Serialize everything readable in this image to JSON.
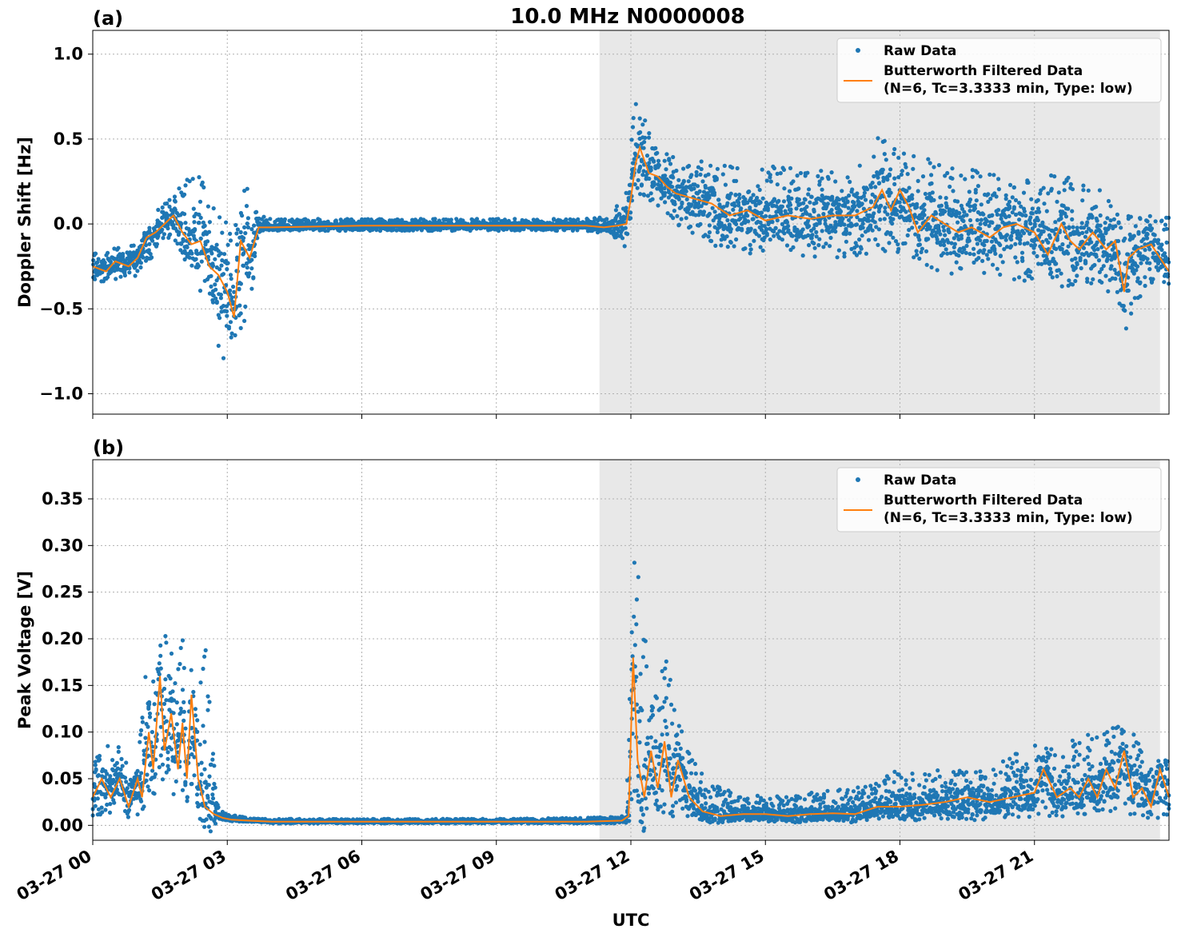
{
  "figure": {
    "title": "10.0 MHz N0000008",
    "xlabel": "UTC",
    "xticks": [
      "03-27 00",
      "03-27 03",
      "03-27 06",
      "03-27 09",
      "03-27 12",
      "03-27 15",
      "03-27 18",
      "03-27 21"
    ],
    "shade_range_hours": [
      11.3,
      23.8
    ],
    "colors": {
      "raw": "#1f77b4",
      "filtered": "#ff7f0e",
      "shade": "#e8e8e8",
      "grid": "#b0b0b0"
    }
  },
  "chart_data": [
    {
      "type": "line",
      "panel_label": "(a)",
      "ylabel": "Doppler Shift [Hz]",
      "ylim": [
        -1.12,
        1.14
      ],
      "xlim_hours": [
        0,
        24
      ],
      "yticks": [
        {
          "v": 1.0,
          "label": "1.0"
        },
        {
          "v": 0.5,
          "label": "0.5"
        },
        {
          "v": 0.0,
          "label": "0.0"
        },
        {
          "v": -0.5,
          "label": "−0.5"
        },
        {
          "v": -1.0,
          "label": "−1.0"
        }
      ],
      "grid": true,
      "legend": {
        "placement": "top-right",
        "entries": [
          "Raw Data",
          "Butterworth Filtered Data",
          "(N=6, Tc=3.3333 min, Type: low)"
        ]
      },
      "series": [
        {
          "name": "Raw Data",
          "kind": "scatter",
          "band_x": [
            0,
            0.5,
            1.0,
            1.2,
            1.5,
            1.8,
            2.0,
            2.3,
            2.6,
            2.9,
            3.0,
            3.2,
            3.5,
            3.7,
            4,
            6,
            9,
            11,
            11.5,
            11.9,
            12.1,
            12.3,
            12.6,
            13,
            14,
            15,
            16,
            17,
            17.5,
            18,
            19,
            20,
            21,
            21.5,
            22,
            22.5,
            22.8,
            23,
            23.5,
            24
          ],
          "band_low": [
            -0.35,
            -0.33,
            -0.32,
            -0.25,
            -0.12,
            -0.08,
            -0.18,
            -0.35,
            -0.6,
            -0.88,
            -0.8,
            -0.7,
            -0.55,
            -0.05,
            -0.04,
            -0.04,
            -0.04,
            -0.04,
            -0.06,
            -0.25,
            0.1,
            0.15,
            0.1,
            0.0,
            -0.15,
            -0.2,
            -0.2,
            -0.2,
            -0.15,
            -0.2,
            -0.3,
            -0.3,
            -0.35,
            -0.4,
            -0.35,
            -0.35,
            -0.45,
            -0.65,
            -0.35,
            -0.35
          ],
          "band_high": [
            -0.15,
            -0.14,
            -0.12,
            -0.02,
            0.1,
            0.18,
            0.3,
            0.32,
            0.22,
            0.05,
            0.1,
            0.15,
            0.25,
            0.05,
            0.03,
            0.03,
            0.03,
            0.03,
            0.05,
            0.2,
            0.75,
            0.65,
            0.45,
            0.4,
            0.35,
            0.35,
            0.32,
            0.3,
            0.55,
            0.45,
            0.35,
            0.3,
            0.25,
            0.3,
            0.25,
            0.2,
            0.1,
            0.05,
            0.05,
            0.05
          ]
        },
        {
          "name": "Butterworth Filtered Data",
          "kind": "line",
          "x": [
            0,
            0.3,
            0.5,
            0.8,
            1.0,
            1.2,
            1.4,
            1.6,
            1.8,
            2.0,
            2.2,
            2.4,
            2.6,
            2.8,
            3.0,
            3.15,
            3.3,
            3.5,
            3.7,
            4.0,
            6,
            8,
            9,
            10,
            11,
            11.4,
            11.7,
            11.9,
            12.0,
            12.1,
            12.2,
            12.4,
            12.6,
            12.8,
            13.0,
            13.4,
            13.8,
            14.2,
            14.6,
            15.0,
            15.5,
            16.0,
            16.5,
            17.0,
            17.4,
            17.6,
            17.8,
            18.0,
            18.2,
            18.4,
            18.7,
            19.0,
            19.3,
            19.6,
            20.0,
            20.3,
            20.6,
            21.0,
            21.3,
            21.6,
            21.8,
            22.0,
            22.3,
            22.6,
            22.8,
            23.0,
            23.1,
            23.3,
            23.6,
            24.0
          ],
          "y": [
            -0.25,
            -0.28,
            -0.22,
            -0.25,
            -0.2,
            -0.08,
            -0.05,
            0.0,
            0.05,
            -0.05,
            -0.12,
            -0.1,
            -0.25,
            -0.3,
            -0.4,
            -0.55,
            -0.1,
            -0.2,
            -0.02,
            -0.02,
            -0.01,
            -0.01,
            -0.01,
            -0.01,
            -0.01,
            -0.02,
            -0.01,
            0.0,
            0.15,
            0.35,
            0.45,
            0.3,
            0.28,
            0.22,
            0.18,
            0.15,
            0.12,
            0.05,
            0.08,
            0.02,
            0.05,
            0.03,
            0.05,
            0.05,
            0.1,
            0.2,
            0.08,
            0.2,
            0.1,
            -0.05,
            0.05,
            0.0,
            -0.05,
            -0.02,
            -0.08,
            -0.02,
            0.0,
            -0.05,
            -0.18,
            0.0,
            -0.1,
            -0.15,
            -0.05,
            -0.15,
            -0.1,
            -0.4,
            -0.2,
            -0.15,
            -0.12,
            -0.28
          ]
        }
      ]
    },
    {
      "type": "line",
      "panel_label": "(b)",
      "ylabel": "Peak Voltage [V]",
      "ylim": [
        -0.016,
        0.392
      ],
      "xlim_hours": [
        0,
        24
      ],
      "yticks": [
        {
          "v": 0.35,
          "label": "0.35"
        },
        {
          "v": 0.3,
          "label": "0.30"
        },
        {
          "v": 0.25,
          "label": "0.25"
        },
        {
          "v": 0.2,
          "label": "0.20"
        },
        {
          "v": 0.15,
          "label": "0.15"
        },
        {
          "v": 0.1,
          "label": "0.10"
        },
        {
          "v": 0.05,
          "label": "0.05"
        },
        {
          "v": 0.0,
          "label": "0.00"
        }
      ],
      "grid": true,
      "legend": {
        "placement": "top-right",
        "entries": [
          "Raw Data",
          "Butterworth Filtered Data",
          "(N=6, Tc=3.3333 min, Type: low)"
        ]
      },
      "series": [
        {
          "name": "Raw Data",
          "kind": "scatter",
          "band_x": [
            0,
            0.5,
            1.0,
            1.2,
            1.4,
            1.6,
            1.8,
            2.0,
            2.2,
            2.5,
            2.8,
            3.0,
            3.5,
            4,
            6,
            9,
            11,
            11.9,
            12.05,
            12.2,
            12.5,
            12.8,
            13.0,
            13.5,
            14,
            15,
            16,
            17,
            18,
            19,
            20,
            21,
            21.5,
            22,
            22.5,
            23,
            23.5,
            24
          ],
          "band_low": [
            0.01,
            0.01,
            0.01,
            0.02,
            0.03,
            0.04,
            0.02,
            0.03,
            0.02,
            0.02,
            0.008,
            0.005,
            0.003,
            0.002,
            0.002,
            0.002,
            0.002,
            0.002,
            0.03,
            0.02,
            0.01,
            0.01,
            0.01,
            0.005,
            0.005,
            0.003,
            0.003,
            0.003,
            0.005,
            0.005,
            0.005,
            0.008,
            0.008,
            0.01,
            0.01,
            0.008,
            0.008,
            0.008
          ],
          "band_high": [
            0.08,
            0.09,
            0.06,
            0.2,
            0.16,
            0.24,
            0.2,
            0.22,
            0.2,
            0.2,
            0.02,
            0.012,
            0.008,
            0.007,
            0.007,
            0.007,
            0.008,
            0.01,
            0.33,
            0.25,
            0.14,
            0.18,
            0.13,
            0.06,
            0.04,
            0.03,
            0.035,
            0.04,
            0.06,
            0.06,
            0.06,
            0.09,
            0.08,
            0.1,
            0.1,
            0.12,
            0.07,
            0.07
          ]
        },
        {
          "name": "Butterworth Filtered Data",
          "kind": "line",
          "x": [
            0,
            0.2,
            0.4,
            0.6,
            0.8,
            1.0,
            1.1,
            1.25,
            1.35,
            1.5,
            1.6,
            1.75,
            1.9,
            2.0,
            2.1,
            2.2,
            2.35,
            2.5,
            2.7,
            2.9,
            3.1,
            3.5,
            4,
            6,
            9,
            11,
            11.8,
            11.95,
            12.05,
            12.15,
            12.3,
            12.45,
            12.6,
            12.75,
            12.9,
            13.05,
            13.3,
            13.6,
            14.0,
            14.5,
            15,
            15.5,
            16,
            16.5,
            17,
            17.5,
            18,
            18.5,
            19,
            19.5,
            20,
            20.5,
            21,
            21.2,
            21.5,
            21.8,
            22.0,
            22.2,
            22.4,
            22.6,
            22.8,
            23.0,
            23.2,
            23.4,
            23.6,
            23.8,
            24.0
          ],
          "y": [
            0.03,
            0.05,
            0.03,
            0.05,
            0.02,
            0.05,
            0.03,
            0.1,
            0.06,
            0.16,
            0.08,
            0.12,
            0.06,
            0.11,
            0.05,
            0.14,
            0.05,
            0.02,
            0.012,
            0.008,
            0.006,
            0.005,
            0.004,
            0.004,
            0.004,
            0.004,
            0.005,
            0.01,
            0.18,
            0.07,
            0.03,
            0.08,
            0.04,
            0.09,
            0.03,
            0.07,
            0.03,
            0.015,
            0.01,
            0.012,
            0.012,
            0.01,
            0.012,
            0.013,
            0.012,
            0.02,
            0.02,
            0.022,
            0.025,
            0.03,
            0.025,
            0.03,
            0.035,
            0.06,
            0.03,
            0.04,
            0.03,
            0.05,
            0.03,
            0.06,
            0.04,
            0.08,
            0.03,
            0.04,
            0.02,
            0.06,
            0.03
          ]
        }
      ]
    }
  ]
}
